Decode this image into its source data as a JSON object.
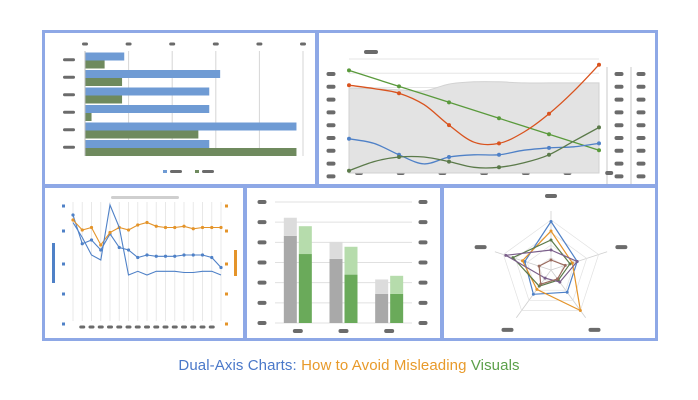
{
  "caption": {
    "part1": "Dual-Axis Charts:",
    "part2": "How to Avoid Misleading",
    "part3": "Visuals",
    "colors": {
      "part1": "#4a78c9",
      "part2": "#e89a2a",
      "part3": "#5ca04a"
    }
  },
  "colors": {
    "frame": "#8ea8e6",
    "blue": "#4f81c7",
    "bar_blue": "#6f9bd4",
    "bar_green": "#6f8a5e",
    "orange": "#e4942a",
    "red": "#d9531e",
    "green": "#5a9a3c",
    "dark_green": "#5b7a4a",
    "gray_fill": "#e3e3e3",
    "placeholder": "#6b6b6b"
  },
  "chart_data": [
    {
      "type": "bar",
      "orientation": "horizontal",
      "categories": [
        "",
        "",
        "",
        "",
        "",
        ""
      ],
      "xlim": [
        0,
        100
      ],
      "series": [
        {
          "values": [
            18,
            62,
            57,
            57,
            97,
            57
          ]
        },
        {
          "values": [
            9,
            17,
            17,
            3,
            52,
            97
          ]
        }
      ],
      "grid": true,
      "legend": "bottom"
    },
    {
      "type": "line",
      "x": [
        0,
        1,
        2,
        3,
        4,
        5,
        6,
        7,
        8,
        9,
        10
      ],
      "ylim": [
        0,
        100
      ],
      "y2lim": [
        0,
        100
      ],
      "area": {
        "upper": [
          74,
          74,
          73,
          72,
          78,
          80,
          80,
          79,
          79,
          79,
          79
        ],
        "lower": [
          0,
          0,
          0,
          0,
          0,
          0,
          0,
          0,
          0,
          0,
          0
        ]
      },
      "series": [
        {
          "axis": "left",
          "values": [
            90,
            83,
            76,
            69,
            62,
            55,
            48,
            41,
            34,
            27,
            20
          ]
        },
        {
          "axis": "left",
          "values": [
            77,
            74,
            70,
            60,
            42,
            27,
            26,
            36,
            52,
            72,
            95
          ]
        },
        {
          "axis": "left",
          "values": [
            30,
            26,
            16,
            8,
            14,
            16,
            16,
            20,
            22,
            23,
            26
          ]
        },
        {
          "axis": "right",
          "values": [
            2,
            10,
            14,
            14,
            10,
            5,
            5,
            9,
            16,
            28,
            40
          ]
        }
      ],
      "grid": true
    },
    {
      "type": "line",
      "x": [
        0,
        1,
        2,
        3,
        4,
        5,
        6,
        7,
        8,
        9,
        10,
        11,
        12,
        13,
        14,
        15,
        16
      ],
      "ylim": [
        0,
        100
      ],
      "y2lim": [
        0,
        100
      ],
      "series": [
        {
          "axis": "left",
          "values": [
            88,
            65,
            68,
            60,
            73,
            62,
            60,
            54,
            56,
            55,
            55,
            55,
            56,
            56,
            56,
            54,
            46
          ]
        },
        {
          "axis": "right",
          "values": [
            84,
            76,
            78,
            64,
            74,
            78,
            76,
            80,
            82,
            79,
            78,
            78,
            79,
            77,
            78,
            78,
            78
          ]
        },
        {
          "axis": "left",
          "values": [
            82,
            70,
            56,
            52,
            96,
            78,
            40,
            43,
            40,
            43,
            43,
            43,
            42,
            42,
            43,
            43,
            40
          ]
        }
      ],
      "grid": true
    },
    {
      "type": "bar",
      "orientation": "vertical",
      "categories": [
        "",
        "",
        ""
      ],
      "ylim": [
        0,
        100
      ],
      "y2lim": [
        0,
        100
      ],
      "series": [
        {
          "axis": "left",
          "stack": "a",
          "values": [
            72,
            53,
            24
          ]
        },
        {
          "axis": "left",
          "stack": "a",
          "values": [
            15,
            14,
            12
          ]
        },
        {
          "axis": "right",
          "stack": "b",
          "values": [
            57,
            40,
            24
          ]
        },
        {
          "axis": "right",
          "stack": "b",
          "values": [
            23,
            23,
            15
          ]
        }
      ],
      "grid": true
    },
    {
      "type": "radar",
      "axes": [
        "",
        "",
        "",
        "",
        ""
      ],
      "rlim": [
        0,
        100
      ],
      "series": [
        {
          "values": [
            97,
            55,
            55,
            60,
            55
          ]
        },
        {
          "values": [
            78,
            45,
            100,
            48,
            60
          ]
        },
        {
          "values": [
            60,
            40,
            25,
            40,
            80
          ]
        },
        {
          "values": [
            40,
            55,
            30,
            20,
            95
          ]
        },
        {
          "values": [
            20,
            30,
            22,
            35,
            25
          ]
        }
      ]
    }
  ]
}
